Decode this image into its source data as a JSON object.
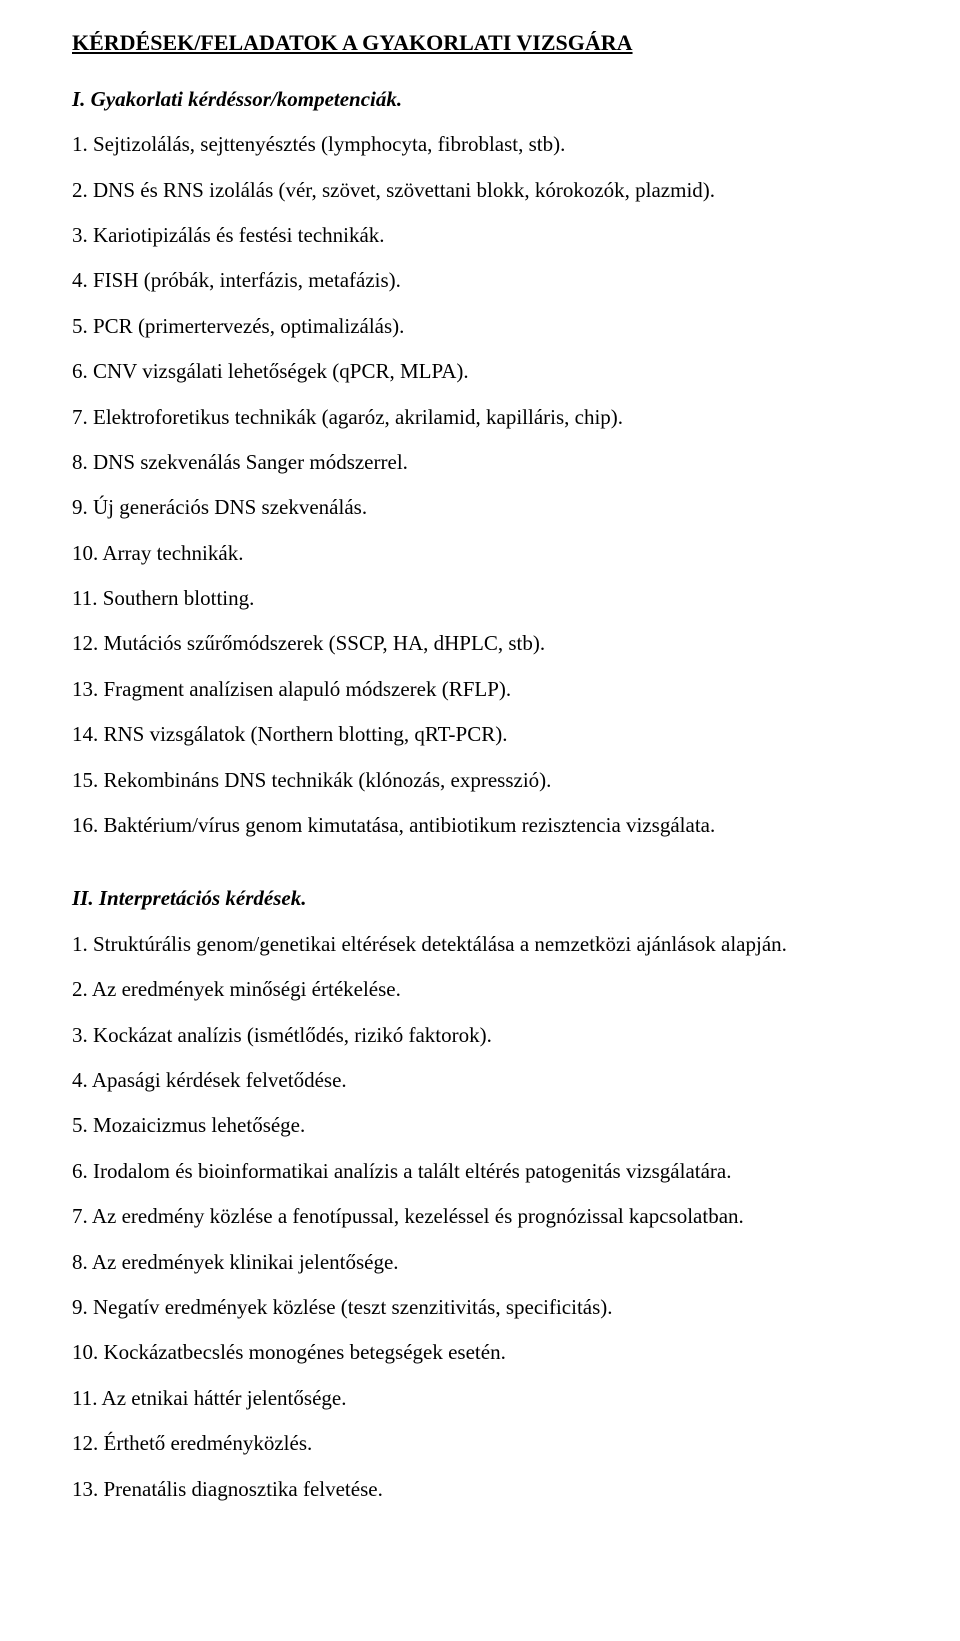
{
  "title": "KÉRDÉSEK/FELADATOK A GYAKORLATI VIZSGÁRA",
  "sections": [
    {
      "heading": "I. Gyakorlati kérdéssor/kompetenciák.",
      "items": [
        "1. Sejtizolálás, sejttenyésztés (lymphocyta, fibroblast, stb).",
        "2. DNS és RNS izolálás (vér, szövet, szövettani blokk, kórokozók, plazmid).",
        "3. Kariotipizálás és festési technikák.",
        "4. FISH (próbák, interfázis, metafázis).",
        "5. PCR (primertervezés, optimalizálás).",
        "6. CNV vizsgálati lehetőségek (qPCR, MLPA).",
        "7. Elektroforetikus technikák (agaróz, akrilamid, kapilláris, chip).",
        "8. DNS szekvenálás Sanger módszerrel.",
        "9. Új generációs DNS szekvenálás.",
        "10. Array technikák.",
        "11. Southern blotting.",
        "12. Mutációs szűrőmódszerek (SSCP, HA, dHPLC, stb).",
        "13. Fragment analízisen alapuló módszerek (RFLP).",
        "14. RNS vizsgálatok (Northern blotting, qRT-PCR).",
        "15. Rekombináns DNS technikák (klónozás, expresszió).",
        "16. Baktérium/vírus genom kimutatása, antibiotikum rezisztencia vizsgálata."
      ]
    },
    {
      "heading": "II. Interpretációs kérdések.",
      "items": [
        "1. Struktúrális genom/genetikai eltérések detektálása a nemzetközi ajánlások alapján.",
        "2. Az eredmények minőségi értékelése.",
        "3. Kockázat analízis (ismétlődés, rizikó faktorok).",
        "4. Apasági kérdések felvetődése.",
        "5. Mozaicizmus lehetősége.",
        "6. Irodalom és bioinformatikai analízis a talált eltérés patogenitás vizsgálatára.",
        "7. Az eredmény közlése a fenotípussal, kezeléssel és prognózissal kapcsolatban.",
        "8. Az eredmények klinikai jelentősége.",
        "9. Negatív eredmények közlése (teszt szenzitivitás, specificitás).",
        "10. Kockázatbecslés monogénes betegségek esetén.",
        "11. Az etnikai háttér jelentősége.",
        "12. Érthető eredményközlés.",
        "13. Prenatális diagnosztika felvetése."
      ]
    }
  ]
}
